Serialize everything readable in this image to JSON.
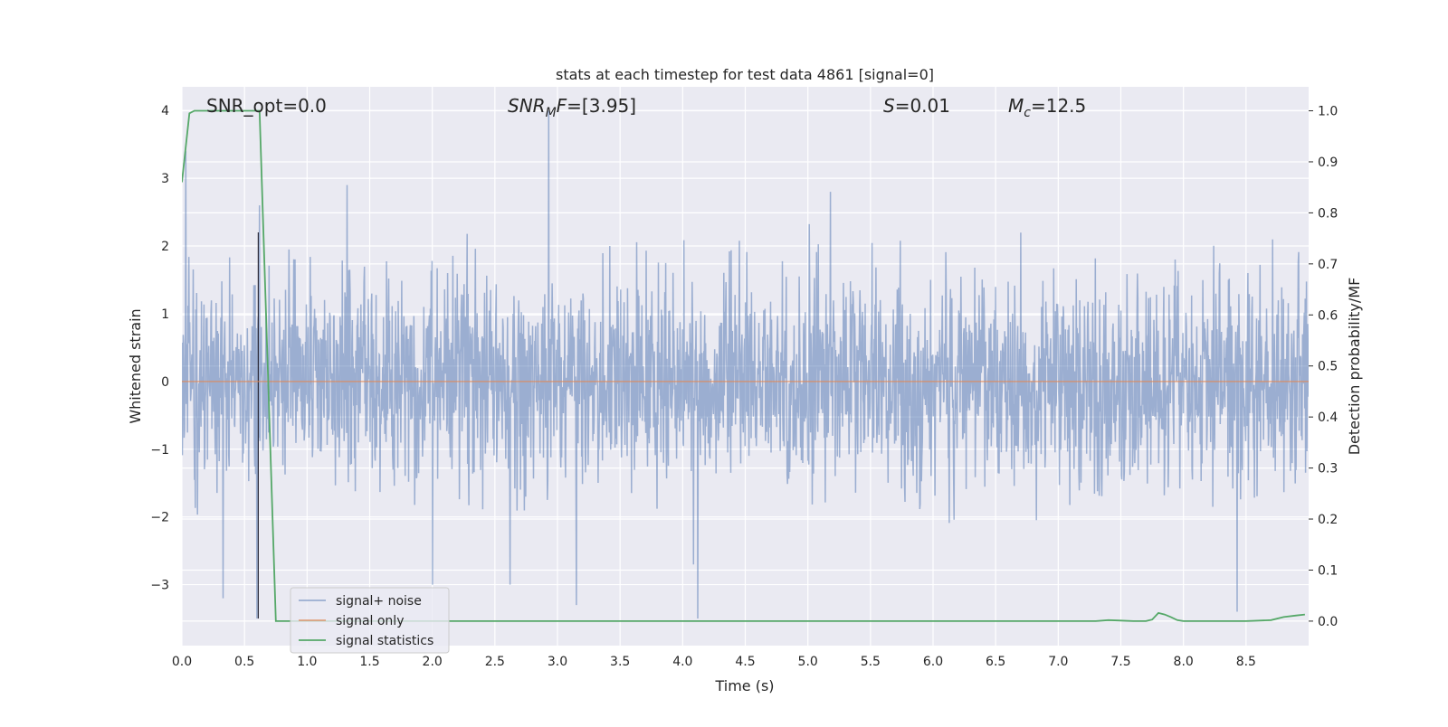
{
  "chart_data": {
    "type": "line",
    "title": "stats at each timestep for test data 4861 [signal=0]",
    "xlabel": "Time (s)",
    "ylabel": "Whitened strain",
    "y2label": "Detection probability/MF",
    "xlim": [
      0,
      9
    ],
    "ylim": [
      -3.9,
      4.35
    ],
    "y2lim": [
      -0.048,
      1.047
    ],
    "xticks": [
      "0.0",
      "0.5",
      "1.0",
      "1.5",
      "2.0",
      "2.5",
      "3.0",
      "3.5",
      "4.0",
      "4.5",
      "5.0",
      "5.5",
      "6.0",
      "6.5",
      "7.0",
      "7.5",
      "8.0",
      "8.5"
    ],
    "yticks": [
      "4",
      "3",
      "2",
      "1",
      "0",
      "−1",
      "−2",
      "−3"
    ],
    "y2ticks": [
      "1.0",
      "0.9",
      "0.8",
      "0.7",
      "0.6",
      "0.5",
      "0.4",
      "0.3",
      "0.2",
      "0.1",
      "0.0"
    ],
    "grid": true,
    "legend_position": "lower-left",
    "annotations": {
      "snr_opt": "SNR_opt=0.0",
      "snr_mf_italic": "SNR",
      "snr_mf_sub": "M",
      "snr_mf_italic2": "F",
      "snr_mf_value": "=[3.95]",
      "s_italic": "S",
      "s_value": "=0.01",
      "mc_italic": "M",
      "mc_sub": "c",
      "mc_value": "=12.5"
    },
    "series": [
      {
        "name": "signal+ noise",
        "color": "#4c72b0",
        "kind": "noise",
        "envelope_abs": 1.8,
        "spikes": [
          [
            0.03,
            3.4
          ],
          [
            0.6,
            -3.5
          ],
          [
            0.62,
            2.6
          ],
          [
            1.32,
            2.9
          ],
          [
            2.93,
            4.0
          ],
          [
            3.15,
            -3.3
          ],
          [
            2.62,
            -3.0
          ],
          [
            4.12,
            -3.5
          ],
          [
            2.0,
            -3.0
          ],
          [
            0.33,
            -3.2
          ],
          [
            5.18,
            2.8
          ],
          [
            8.43,
            -3.4
          ]
        ]
      },
      {
        "name": "signal only",
        "color": "#dd8452",
        "x": [
          0,
          9
        ],
        "y": [
          0,
          0
        ]
      },
      {
        "name": "signal statistics",
        "color": "#55a868",
        "axis": "right",
        "x": [
          0.0,
          0.06,
          0.1,
          0.5,
          0.6,
          0.62,
          0.75,
          1.0,
          2.0,
          3.0,
          4.0,
          5.0,
          6.0,
          7.0,
          7.3,
          7.4,
          7.5,
          7.6,
          7.7,
          7.75,
          7.8,
          7.85,
          7.9,
          7.95,
          8.0,
          8.5,
          8.7,
          8.8,
          8.9,
          8.97
        ],
        "y": [
          0.86,
          0.995,
          1.0,
          1.0,
          1.0,
          1.0,
          0.0,
          0.0,
          0.0,
          0.0,
          0.0,
          0.0,
          0.0,
          0.0,
          0.0,
          0.002,
          0.001,
          0.0,
          0.0,
          0.003,
          0.016,
          0.013,
          0.008,
          0.002,
          0.0,
          0.0,
          0.002,
          0.008,
          0.011,
          0.013
        ]
      }
    ],
    "vertical_line_x": 0.61
  }
}
